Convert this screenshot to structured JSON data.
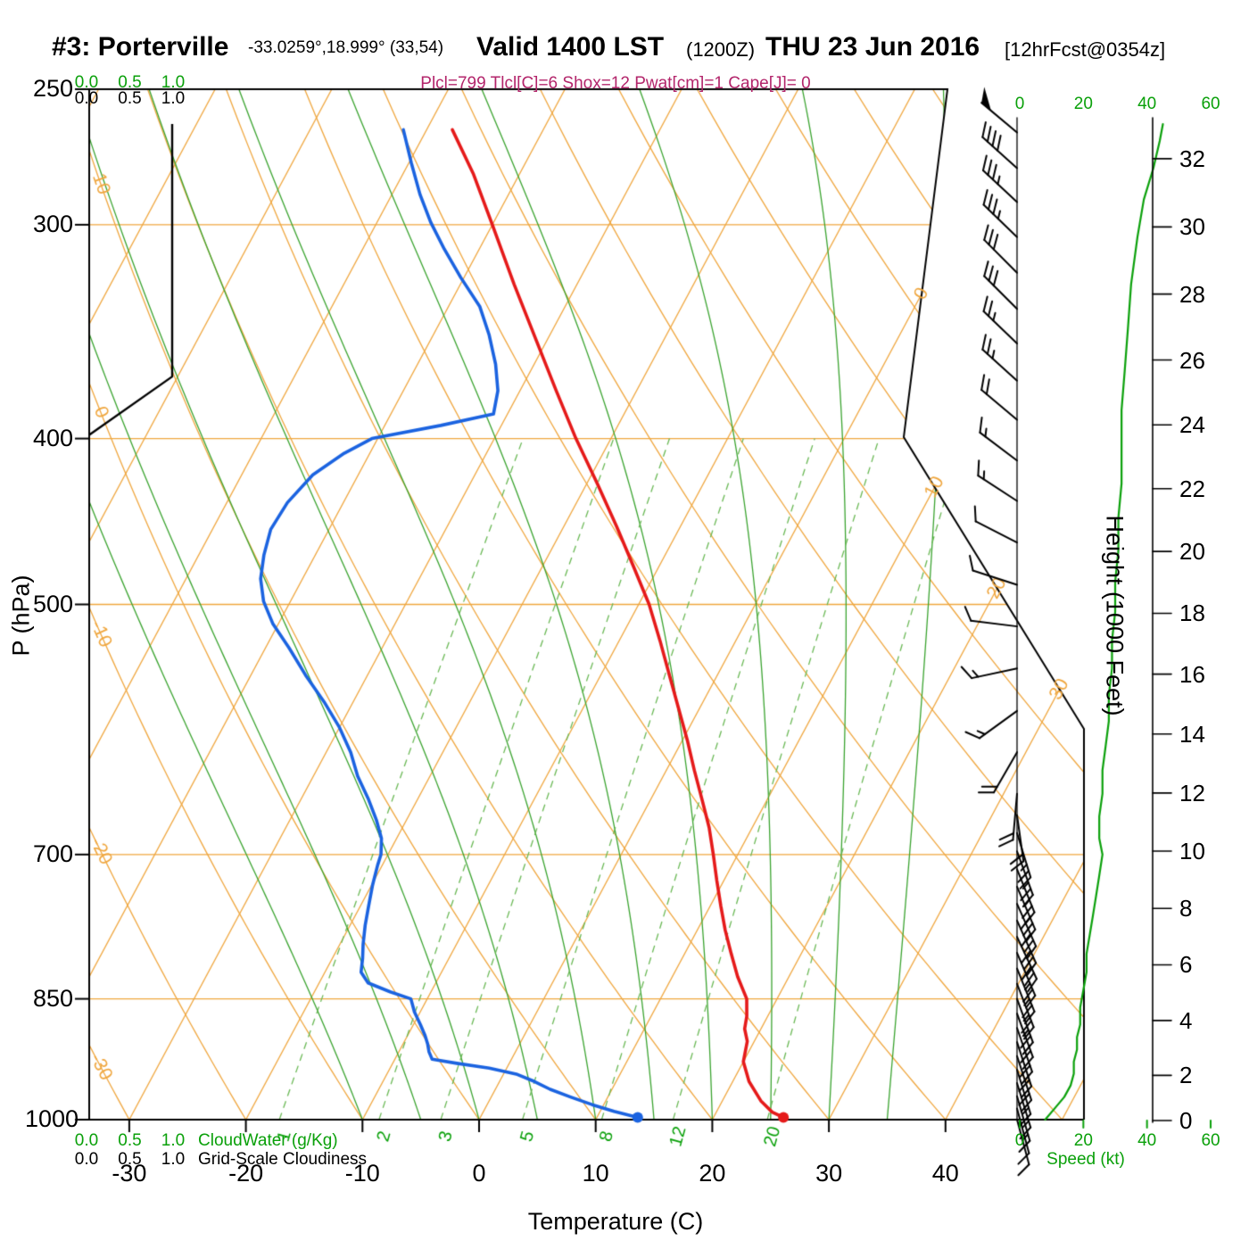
{
  "header": {
    "station": "#3: Porterville",
    "coords": "-33.0259°,18.999° (33,54)",
    "valid_time": "Valid 1400 LST",
    "valid_zulu": "(1200Z)",
    "valid_date": "THU 23 Jun 2016",
    "forecast_tag": "[12hrFcst@0354z]",
    "indices": "Plcl=799 Tlcl[C]=6 Shox=12 Pwat[cm]=1 Cape[J]= 0"
  },
  "axes": {
    "pressure_title": "P (hPa)",
    "temperature_title": "Temperature (C)",
    "height_title": "Height (1000 Feet)",
    "pressure_ticks": [
      250,
      300,
      400,
      500,
      700,
      850,
      1000
    ],
    "temperature_ticks": [
      -30,
      -20,
      -10,
      0,
      10,
      20,
      30,
      40
    ],
    "height_ticks": [
      0,
      2,
      4,
      6,
      8,
      10,
      12,
      14,
      16,
      18,
      20,
      22,
      24,
      26,
      28,
      30,
      32
    ],
    "speed_ticks": [
      0,
      20,
      40,
      60
    ],
    "cloud_scale_ticks": [
      "0.0",
      "0.5",
      "1.0"
    ]
  },
  "legend": {
    "cloudwater": "CloudWater (g/Kg)",
    "cloudiness": "Grid-Scale Cloudiness",
    "speed": "Speed (kt)"
  },
  "colors": {
    "grid_orange": "#efa63e",
    "moist_green": "#3aa32f",
    "mixing_green": "#6ab855",
    "green_text": "#0aa00a",
    "temperature_red": "#e51a1a",
    "dewpoint_blue": "#1b63e0",
    "magenta": "#b3256b",
    "black": "#000000"
  },
  "chart_data": {
    "type": "skewt-logp",
    "pressure_range": [
      250,
      1000
    ],
    "isotherms": {
      "min": -80,
      "max": 50,
      "step": 10
    },
    "dry_adiabats": {
      "min": -40,
      "max": 140,
      "step": 10
    },
    "isotherm_labels": [
      0,
      10,
      20,
      30
    ],
    "dry_adiabat_labels": [
      10,
      0,
      -10,
      -20,
      -30
    ],
    "mixing_ratio_lines": [
      1,
      2,
      3,
      5,
      8,
      12,
      20
    ],
    "moist_adiabats": [
      -10,
      -5,
      0,
      5,
      10,
      15,
      20,
      25,
      30,
      35
    ],
    "temperature_profile": [
      [
        997,
        26.0
      ],
      [
        990,
        24.8
      ],
      [
        975,
        23.3
      ],
      [
        950,
        21.4
      ],
      [
        925,
        20.0
      ],
      [
        900,
        19.4
      ],
      [
        885,
        18.6
      ],
      [
        870,
        18.2
      ],
      [
        850,
        17.4
      ],
      [
        825,
        15.6
      ],
      [
        800,
        14.0
      ],
      [
        775,
        12.4
      ],
      [
        750,
        10.9
      ],
      [
        725,
        9.4
      ],
      [
        700,
        7.9
      ],
      [
        675,
        6.3
      ],
      [
        650,
        4.4
      ],
      [
        625,
        2.4
      ],
      [
        600,
        0.4
      ],
      [
        575,
        -1.8
      ],
      [
        550,
        -4.1
      ],
      [
        525,
        -6.5
      ],
      [
        500,
        -9.1
      ],
      [
        475,
        -12.2
      ],
      [
        450,
        -15.5
      ],
      [
        425,
        -19.1
      ],
      [
        400,
        -23.0
      ],
      [
        375,
        -26.9
      ],
      [
        350,
        -31.0
      ],
      [
        325,
        -35.4
      ],
      [
        300,
        -40.0
      ],
      [
        280,
        -44.0
      ],
      [
        264,
        -47.8
      ]
    ],
    "dewpoint_profile": [
      [
        997,
        13.5
      ],
      [
        989,
        11.2
      ],
      [
        980,
        9.0
      ],
      [
        970,
        6.8
      ],
      [
        960,
        4.7
      ],
      [
        950,
        3.0
      ],
      [
        941,
        1.2
      ],
      [
        933,
        -1.5
      ],
      [
        927,
        -4.5
      ],
      [
        922,
        -6.8
      ],
      [
        913,
        -7.4
      ],
      [
        903,
        -7.9
      ],
      [
        893,
        -8.5
      ],
      [
        880,
        -9.4
      ],
      [
        865,
        -10.5
      ],
      [
        850,
        -11.4
      ],
      [
        842,
        -13.5
      ],
      [
        832,
        -15.8
      ],
      [
        820,
        -16.9
      ],
      [
        805,
        -17.4
      ],
      [
        790,
        -18.0
      ],
      [
        770,
        -18.7
      ],
      [
        750,
        -19.3
      ],
      [
        730,
        -19.9
      ],
      [
        710,
        -20.4
      ],
      [
        700,
        -20.6
      ],
      [
        685,
        -21.3
      ],
      [
        668,
        -22.6
      ],
      [
        650,
        -24.2
      ],
      [
        630,
        -26.2
      ],
      [
        610,
        -27.9
      ],
      [
        590,
        -30.0
      ],
      [
        570,
        -32.5
      ],
      [
        550,
        -35.3
      ],
      [
        530,
        -38.0
      ],
      [
        513,
        -40.5
      ],
      [
        498,
        -42.3
      ],
      [
        483,
        -43.6
      ],
      [
        468,
        -44.4
      ],
      [
        452,
        -45.0
      ],
      [
        436,
        -44.8
      ],
      [
        420,
        -43.9
      ],
      [
        408,
        -42.2
      ],
      [
        400,
        -40.5
      ],
      [
        393,
        -35.2
      ],
      [
        387,
        -31.2
      ],
      [
        375,
        -31.9
      ],
      [
        362,
        -33.3
      ],
      [
        348,
        -35.2
      ],
      [
        335,
        -37.3
      ],
      [
        322,
        -40.3
      ],
      [
        310,
        -43.0
      ],
      [
        299,
        -45.4
      ],
      [
        288,
        -47.6
      ],
      [
        276,
        -49.8
      ],
      [
        264,
        -52.0
      ]
    ],
    "wind_barbs": [
      [
        265,
        50,
        310
      ],
      [
        278,
        40,
        312
      ],
      [
        291,
        35,
        313
      ],
      [
        305,
        35,
        314
      ],
      [
        320,
        30,
        315
      ],
      [
        336,
        30,
        315
      ],
      [
        352,
        25,
        314
      ],
      [
        370,
        25,
        312
      ],
      [
        390,
        20,
        310
      ],
      [
        412,
        15,
        307
      ],
      [
        435,
        15,
        303
      ],
      [
        460,
        10,
        297
      ],
      [
        487,
        10,
        288
      ],
      [
        515,
        10,
        277
      ],
      [
        545,
        15,
        258
      ],
      [
        577,
        15,
        234
      ],
      [
        610,
        18,
        210
      ],
      [
        645,
        20,
        185
      ],
      [
        664,
        22,
        172
      ],
      [
        680,
        25,
        163
      ],
      [
        697,
        25,
        160
      ],
      [
        714,
        25,
        158
      ],
      [
        731,
        30,
        157
      ],
      [
        748,
        30,
        156
      ],
      [
        765,
        30,
        156
      ],
      [
        782,
        30,
        155
      ],
      [
        799,
        25,
        157
      ],
      [
        816,
        25,
        158
      ],
      [
        833,
        25,
        159
      ],
      [
        850,
        25,
        160
      ],
      [
        867,
        20,
        160
      ],
      [
        884,
        20,
        161
      ],
      [
        901,
        20,
        162
      ],
      [
        918,
        20,
        162
      ],
      [
        935,
        15,
        163
      ],
      [
        952,
        15,
        163
      ],
      [
        969,
        15,
        164
      ],
      [
        985,
        10,
        165
      ],
      [
        1000,
        10,
        165
      ]
    ],
    "speed_profile": [
      [
        1000,
        8
      ],
      [
        985,
        11
      ],
      [
        970,
        14
      ],
      [
        955,
        16
      ],
      [
        940,
        17
      ],
      [
        925,
        17
      ],
      [
        910,
        18
      ],
      [
        895,
        18
      ],
      [
        880,
        19
      ],
      [
        860,
        19
      ],
      [
        840,
        20
      ],
      [
        820,
        21
      ],
      [
        800,
        21
      ],
      [
        780,
        22
      ],
      [
        760,
        23
      ],
      [
        740,
        24
      ],
      [
        720,
        25
      ],
      [
        700,
        26
      ],
      [
        685,
        25
      ],
      [
        665,
        25
      ],
      [
        645,
        26
      ],
      [
        625,
        26
      ],
      [
        605,
        27
      ],
      [
        585,
        28
      ],
      [
        565,
        28
      ],
      [
        545,
        29
      ],
      [
        525,
        29
      ],
      [
        505,
        30
      ],
      [
        485,
        30
      ],
      [
        465,
        31
      ],
      [
        445,
        31
      ],
      [
        425,
        32
      ],
      [
        405,
        32
      ],
      [
        385,
        32
      ],
      [
        365,
        33
      ],
      [
        345,
        34
      ],
      [
        325,
        35
      ],
      [
        305,
        37
      ],
      [
        290,
        39
      ],
      [
        278,
        42
      ],
      [
        268,
        44
      ],
      [
        262,
        45
      ]
    ],
    "cloudiness_profile": [
      [
        262,
        1.0
      ],
      [
        368,
        1.0
      ],
      [
        398,
        0.0
      ]
    ]
  }
}
